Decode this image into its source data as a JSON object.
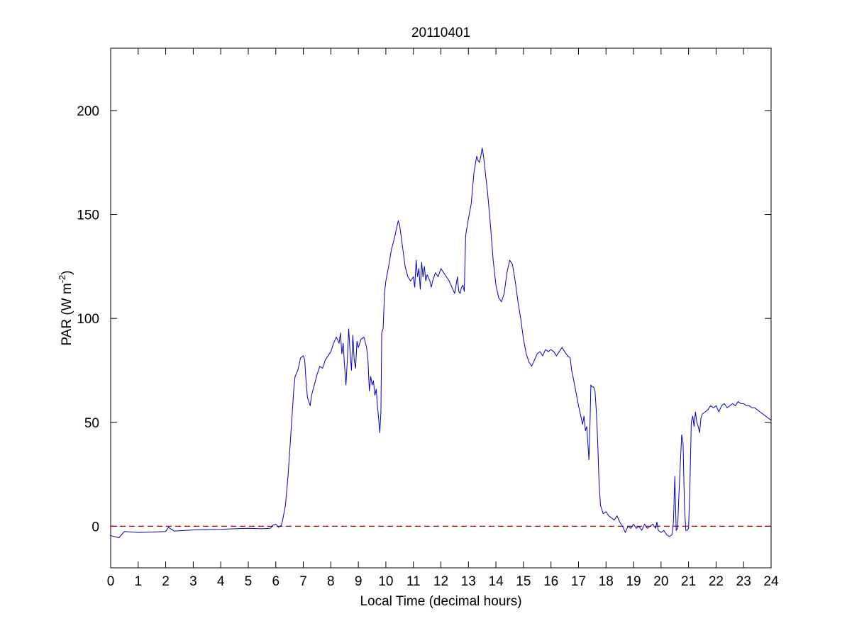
{
  "chart_data": {
    "type": "line",
    "title": "20110401",
    "xlabel": "Local Time (decimal hours)",
    "ylabel": {
      "base": "PAR (W m",
      "sup": "-2",
      "tail": ")"
    },
    "xlim": [
      0,
      24
    ],
    "ylim": [
      -20,
      230
    ],
    "xticks": [
      0,
      1,
      2,
      3,
      4,
      5,
      6,
      7,
      8,
      9,
      10,
      11,
      12,
      13,
      14,
      15,
      16,
      17,
      18,
      19,
      20,
      21,
      22,
      23,
      24
    ],
    "yticks": [
      0,
      50,
      100,
      150,
      200
    ],
    "grid": false,
    "reference_line": {
      "y": 0,
      "color": "#c00000",
      "style": "dashed"
    },
    "series": [
      {
        "color": "#0000c8",
        "points": [
          [
            0.0,
            -4.5
          ],
          [
            0.3,
            -5.5
          ],
          [
            0.5,
            -2.5
          ],
          [
            1.0,
            -3.0
          ],
          [
            1.5,
            -2.8
          ],
          [
            2.0,
            -2.5
          ],
          [
            2.1,
            -0.5
          ],
          [
            2.3,
            -2.3
          ],
          [
            3.0,
            -1.8
          ],
          [
            3.5,
            -1.6
          ],
          [
            4.0,
            -1.5
          ],
          [
            4.5,
            -1.2
          ],
          [
            5.0,
            -1.0
          ],
          [
            5.5,
            -1.2
          ],
          [
            5.8,
            -1.0
          ],
          [
            5.9,
            0.5
          ],
          [
            6.0,
            1.0
          ],
          [
            6.1,
            -0.5
          ],
          [
            6.2,
            0.5
          ],
          [
            6.25,
            3.0
          ],
          [
            6.35,
            10.0
          ],
          [
            6.45,
            25.0
          ],
          [
            6.55,
            45.0
          ],
          [
            6.65,
            65.0
          ],
          [
            6.7,
            72.0
          ],
          [
            6.8,
            75.0
          ],
          [
            6.9,
            81.0
          ],
          [
            7.0,
            82.0
          ],
          [
            7.05,
            80.0
          ],
          [
            7.1,
            70.0
          ],
          [
            7.15,
            62.0
          ],
          [
            7.2,
            60.0
          ],
          [
            7.25,
            58.0
          ],
          [
            7.3,
            63.0
          ],
          [
            7.4,
            68.0
          ],
          [
            7.5,
            73.0
          ],
          [
            7.6,
            77.0
          ],
          [
            7.7,
            76.0
          ],
          [
            7.8,
            80.0
          ],
          [
            7.9,
            82.0
          ],
          [
            8.0,
            84.0
          ],
          [
            8.1,
            88.0
          ],
          [
            8.2,
            91.0
          ],
          [
            8.3,
            88.0
          ],
          [
            8.35,
            93.0
          ],
          [
            8.4,
            83.0
          ],
          [
            8.45,
            88.0
          ],
          [
            8.5,
            77.0
          ],
          [
            8.55,
            68.0
          ],
          [
            8.6,
            80.0
          ],
          [
            8.65,
            95.0
          ],
          [
            8.7,
            84.0
          ],
          [
            8.75,
            75.0
          ],
          [
            8.8,
            92.0
          ],
          [
            8.85,
            80.0
          ],
          [
            8.9,
            76.0
          ],
          [
            8.95,
            89.0
          ],
          [
            9.0,
            86.0
          ],
          [
            9.1,
            90.0
          ],
          [
            9.2,
            91.0
          ],
          [
            9.3,
            86.0
          ],
          [
            9.35,
            80.0
          ],
          [
            9.4,
            65.0
          ],
          [
            9.45,
            72.0
          ],
          [
            9.5,
            68.0
          ],
          [
            9.55,
            70.0
          ],
          [
            9.6,
            63.0
          ],
          [
            9.65,
            66.0
          ],
          [
            9.7,
            57.0
          ],
          [
            9.75,
            50.0
          ],
          [
            9.78,
            45.0
          ],
          [
            9.82,
            55.0
          ],
          [
            9.85,
            93.0
          ],
          [
            9.9,
            95.0
          ],
          [
            9.95,
            112.0
          ],
          [
            10.0,
            118.0
          ],
          [
            10.1,
            125.0
          ],
          [
            10.2,
            133.0
          ],
          [
            10.3,
            138.0
          ],
          [
            10.4,
            144.0
          ],
          [
            10.45,
            147.0
          ],
          [
            10.5,
            145.0
          ],
          [
            10.6,
            135.0
          ],
          [
            10.7,
            125.0
          ],
          [
            10.8,
            120.0
          ],
          [
            10.9,
            118.0
          ],
          [
            11.0,
            120.0
          ],
          [
            11.05,
            115.0
          ],
          [
            11.1,
            128.0
          ],
          [
            11.15,
            120.0
          ],
          [
            11.2,
            124.0
          ],
          [
            11.25,
            114.0
          ],
          [
            11.3,
            127.0
          ],
          [
            11.35,
            120.0
          ],
          [
            11.4,
            125.0
          ],
          [
            11.45,
            118.0
          ],
          [
            11.5,
            121.0
          ],
          [
            11.6,
            118.0
          ],
          [
            11.65,
            115.0
          ],
          [
            11.7,
            118.0
          ],
          [
            11.8,
            122.0
          ],
          [
            11.9,
            120.0
          ],
          [
            12.0,
            124.0
          ],
          [
            12.1,
            122.0
          ],
          [
            12.2,
            120.0
          ],
          [
            12.3,
            118.0
          ],
          [
            12.4,
            115.0
          ],
          [
            12.5,
            112.0
          ],
          [
            12.55,
            116.0
          ],
          [
            12.6,
            120.0
          ],
          [
            12.65,
            113.0
          ],
          [
            12.7,
            112.0
          ],
          [
            12.75,
            115.0
          ],
          [
            12.8,
            116.0
          ],
          [
            12.85,
            113.0
          ],
          [
            12.9,
            140.0
          ],
          [
            13.0,
            148.0
          ],
          [
            13.1,
            155.0
          ],
          [
            13.2,
            170.0
          ],
          [
            13.3,
            178.0
          ],
          [
            13.35,
            176.0
          ],
          [
            13.4,
            175.0
          ],
          [
            13.45,
            178.0
          ],
          [
            13.5,
            182.0
          ],
          [
            13.55,
            178.0
          ],
          [
            13.6,
            172.0
          ],
          [
            13.7,
            160.0
          ],
          [
            13.8,
            145.0
          ],
          [
            13.9,
            128.0
          ],
          [
            14.0,
            116.0
          ],
          [
            14.1,
            110.0
          ],
          [
            14.2,
            108.0
          ],
          [
            14.3,
            112.0
          ],
          [
            14.4,
            122.0
          ],
          [
            14.5,
            128.0
          ],
          [
            14.6,
            126.0
          ],
          [
            14.7,
            118.0
          ],
          [
            14.8,
            108.0
          ],
          [
            14.9,
            100.0
          ],
          [
            15.0,
            90.0
          ],
          [
            15.1,
            83.0
          ],
          [
            15.2,
            79.0
          ],
          [
            15.3,
            77.0
          ],
          [
            15.4,
            80.0
          ],
          [
            15.5,
            83.0
          ],
          [
            15.6,
            84.0
          ],
          [
            15.7,
            82.0
          ],
          [
            15.8,
            85.0
          ],
          [
            15.9,
            84.0
          ],
          [
            16.0,
            85.0
          ],
          [
            16.1,
            84.0
          ],
          [
            16.2,
            82.0
          ],
          [
            16.3,
            84.0
          ],
          [
            16.4,
            86.0
          ],
          [
            16.5,
            84.0
          ],
          [
            16.6,
            82.0
          ],
          [
            16.7,
            81.0
          ],
          [
            16.75,
            75.0
          ],
          [
            16.8,
            72.0
          ],
          [
            16.9,
            65.0
          ],
          [
            17.0,
            58.0
          ],
          [
            17.1,
            52.0
          ],
          [
            17.15,
            49.0
          ],
          [
            17.2,
            53.0
          ],
          [
            17.25,
            46.0
          ],
          [
            17.3,
            48.0
          ],
          [
            17.35,
            38.0
          ],
          [
            17.38,
            32.0
          ],
          [
            17.42,
            50.0
          ],
          [
            17.45,
            68.0
          ],
          [
            17.5,
            67.0
          ],
          [
            17.55,
            67.0
          ],
          [
            17.6,
            65.0
          ],
          [
            17.65,
            55.0
          ],
          [
            17.7,
            40.0
          ],
          [
            17.75,
            20.0
          ],
          [
            17.8,
            10.0
          ],
          [
            17.9,
            6.0
          ],
          [
            18.0,
            7.0
          ],
          [
            18.1,
            5.0
          ],
          [
            18.2,
            4.0
          ],
          [
            18.3,
            3.0
          ],
          [
            18.4,
            5.0
          ],
          [
            18.5,
            2.0
          ],
          [
            18.6,
            0.0
          ],
          [
            18.7,
            -3.0
          ],
          [
            18.8,
            0.0
          ],
          [
            18.9,
            -1.0
          ],
          [
            19.0,
            1.0
          ],
          [
            19.1,
            -1.0
          ],
          [
            19.2,
            0.0
          ],
          [
            19.3,
            -2.0
          ],
          [
            19.4,
            1.0
          ],
          [
            19.5,
            -1.0
          ],
          [
            19.6,
            0.0
          ],
          [
            19.7,
            1.0
          ],
          [
            19.8,
            -1.0
          ],
          [
            19.85,
            2.0
          ],
          [
            19.9,
            -2.0
          ],
          [
            20.0,
            -3.0
          ],
          [
            20.1,
            -2.0
          ],
          [
            20.2,
            -4.0
          ],
          [
            20.3,
            -5.0
          ],
          [
            20.4,
            -4.0
          ],
          [
            20.45,
            2.0
          ],
          [
            20.5,
            24.0
          ],
          [
            20.55,
            -2.0
          ],
          [
            20.6,
            -1.0
          ],
          [
            20.65,
            15.0
          ],
          [
            20.7,
            30.0
          ],
          [
            20.75,
            44.0
          ],
          [
            20.8,
            40.0
          ],
          [
            20.85,
            10.0
          ],
          [
            20.9,
            -2.0
          ],
          [
            20.95,
            -2.0
          ],
          [
            21.0,
            -1.0
          ],
          [
            21.05,
            20.0
          ],
          [
            21.1,
            50.0
          ],
          [
            21.15,
            53.0
          ],
          [
            21.2,
            48.0
          ],
          [
            21.25,
            55.0
          ],
          [
            21.3,
            50.0
          ],
          [
            21.35,
            48.0
          ],
          [
            21.4,
            45.0
          ],
          [
            21.45,
            52.0
          ],
          [
            21.5,
            54.0
          ],
          [
            21.6,
            55.0
          ],
          [
            21.7,
            56.0
          ],
          [
            21.8,
            58.0
          ],
          [
            21.9,
            57.0
          ],
          [
            22.0,
            58.0
          ],
          [
            22.1,
            55.0
          ],
          [
            22.2,
            58.0
          ],
          [
            22.3,
            59.0
          ],
          [
            22.4,
            57.0
          ],
          [
            22.5,
            58.0
          ],
          [
            22.6,
            59.0
          ],
          [
            22.7,
            58.0
          ],
          [
            22.8,
            60.0
          ],
          [
            22.9,
            59.0
          ],
          [
            23.0,
            59.0
          ],
          [
            23.1,
            58.0
          ],
          [
            23.2,
            58.0
          ],
          [
            23.3,
            57.0
          ],
          [
            23.4,
            57.0
          ],
          [
            23.5,
            56.0
          ],
          [
            23.6,
            55.0
          ],
          [
            23.7,
            54.0
          ],
          [
            23.8,
            53.0
          ],
          [
            23.9,
            52.0
          ],
          [
            24.0,
            51.0
          ]
        ]
      }
    ]
  }
}
